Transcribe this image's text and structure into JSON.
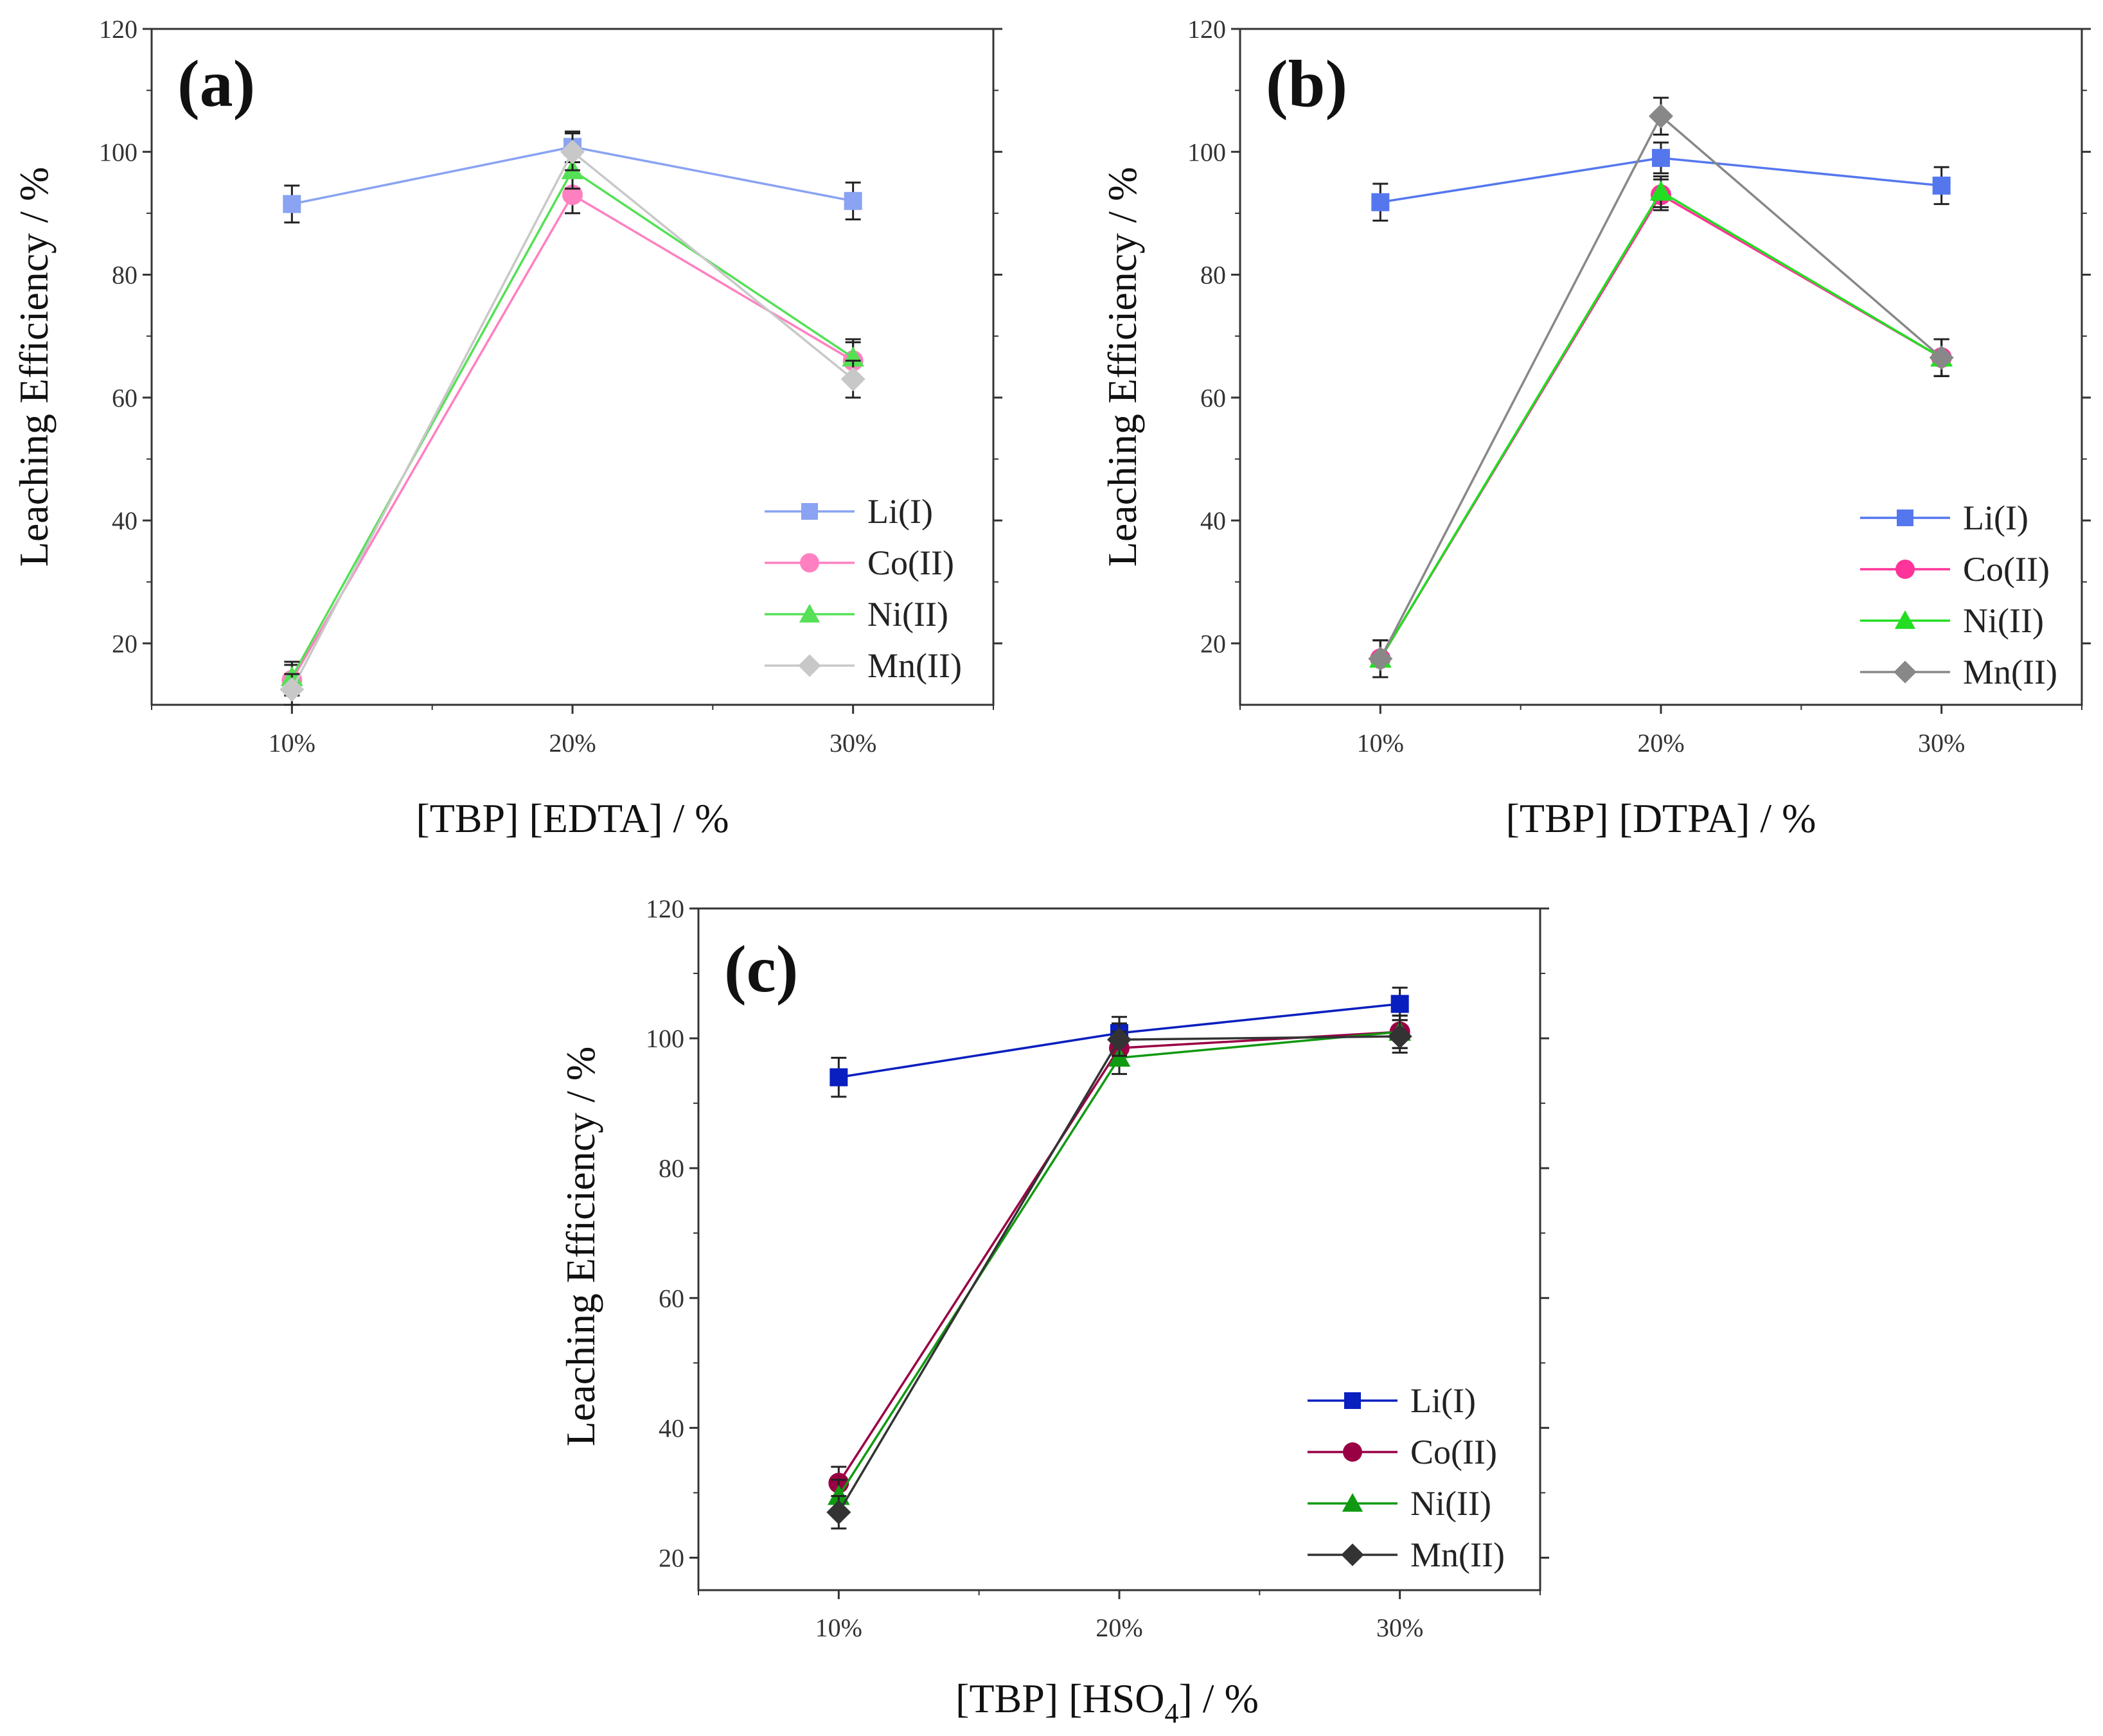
{
  "chart_data": [
    {
      "type": "line",
      "panel_label": "(a)",
      "title": "",
      "xlabel": "[TBP] [EDTA] / %",
      "ylabel": "Leaching Efficiency / %",
      "categories": [
        "10%",
        "20%",
        "30%"
      ],
      "ylim": [
        10,
        120
      ],
      "yticks": [
        "20",
        "40",
        "60",
        "80",
        "100",
        "120"
      ],
      "legend_position": "bottom-right",
      "series": [
        {
          "name": "Li(I)",
          "values": [
            91.5,
            100.8,
            92
          ],
          "errors": [
            3,
            2.5,
            3
          ],
          "color": "#8aa3f2",
          "marker": "square"
        },
        {
          "name": "Co(II)",
          "values": [
            14,
            93,
            66
          ],
          "errors": [
            2.5,
            3,
            3
          ],
          "color": "#ff80c0",
          "marker": "circle"
        },
        {
          "name": "Ni(II)",
          "values": [
            14.5,
            97,
            66.5
          ],
          "errors": [
            2.5,
            3,
            3
          ],
          "color": "#55e055",
          "marker": "triangle"
        },
        {
          "name": "Mn(II)",
          "values": [
            12.5,
            100,
            63
          ],
          "errors": [
            2.5,
            3,
            3
          ],
          "color": "#c8c8c8",
          "marker": "diamond"
        }
      ]
    },
    {
      "type": "line",
      "panel_label": "(b)",
      "title": "",
      "xlabel": "[TBP] [DTPA] / %",
      "ylabel": "Leaching Efficiency / %",
      "categories": [
        "10%",
        "20%",
        "30%"
      ],
      "ylim": [
        10,
        120
      ],
      "yticks": [
        "20",
        "40",
        "60",
        "80",
        "100",
        "120"
      ],
      "legend_position": "bottom-right",
      "series": [
        {
          "name": "Li(I)",
          "values": [
            91.8,
            99,
            94.5
          ],
          "errors": [
            3,
            2.5,
            3
          ],
          "color": "#5577ee",
          "marker": "square"
        },
        {
          "name": "Co(II)",
          "values": [
            17.5,
            93,
            66.5
          ],
          "errors": [
            3,
            2.5,
            3
          ],
          "color": "#ff3399",
          "marker": "circle"
        },
        {
          "name": "Ni(II)",
          "values": [
            17.5,
            93.5,
            66.5
          ],
          "errors": [
            3,
            2.5,
            3
          ],
          "color": "#22dd22",
          "marker": "triangle"
        },
        {
          "name": "Mn(II)",
          "values": [
            17.5,
            105.8,
            66.5
          ],
          "errors": [
            3,
            3,
            3
          ],
          "color": "#888888",
          "marker": "diamond"
        }
      ]
    },
    {
      "type": "line",
      "panel_label": "(c)",
      "title": "",
      "xlabel_main": "[TBP] [HSO",
      "xlabel_subscript": "4",
      "xlabel_suffix": "] / %",
      "ylabel": "Leaching Efficiency / %",
      "categories": [
        "10%",
        "20%",
        "30%"
      ],
      "ylim": [
        15,
        120
      ],
      "yticks": [
        "20",
        "40",
        "60",
        "80",
        "100",
        "120"
      ],
      "legend_position": "bottom-right",
      "series": [
        {
          "name": "Li(I)",
          "values": [
            94,
            100.8,
            105.3
          ],
          "errors": [
            3,
            2.5,
            2.5
          ],
          "color": "#0a1fbf",
          "marker": "square"
        },
        {
          "name": "Co(II)",
          "values": [
            31.5,
            98.5,
            101
          ],
          "errors": [
            2.5,
            2.5,
            2.5
          ],
          "color": "#990044",
          "marker": "circle"
        },
        {
          "name": "Ni(II)",
          "values": [
            29.5,
            97,
            101
          ],
          "errors": [
            2.5,
            2.5,
            2.5
          ],
          "color": "#119911",
          "marker": "triangle"
        },
        {
          "name": "Mn(II)",
          "values": [
            27,
            99.8,
            100.3
          ],
          "errors": [
            2.5,
            2.5,
            2.5
          ],
          "color": "#333333",
          "marker": "diamond"
        }
      ]
    }
  ]
}
